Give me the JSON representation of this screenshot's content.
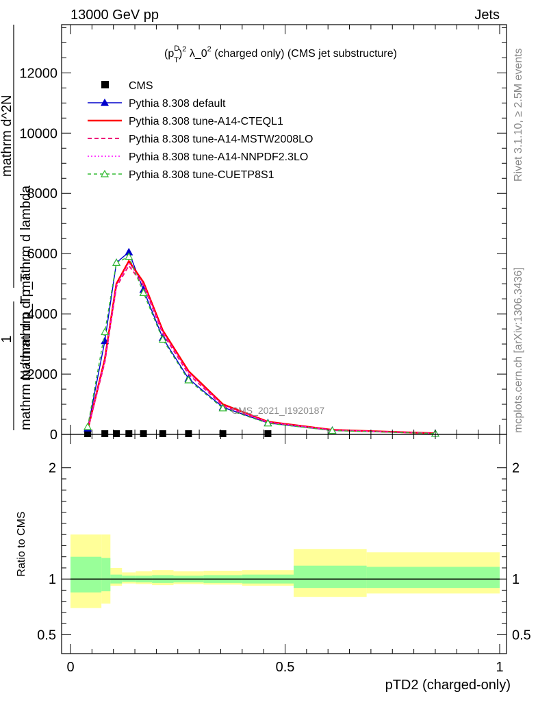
{
  "header": {
    "left": "13000 GeV pp",
    "right": "Jets"
  },
  "side": {
    "rivet": "Rivet 3.1.10, ≥ 2.5M events",
    "mcplots": "mcplots.cern.ch [arXiv:1306.3436]"
  },
  "watermark": "CMS_2021_I1920187",
  "chart_data": [
    {
      "type": "line",
      "title": "(p_T^D)^2 λ_0^2 (charged only) (CMS jet substructure)",
      "title_parts": {
        "p": "(p",
        "sup_d": "D",
        "sub_t": "T",
        "close": ")",
        "sup2": "2",
        "lambda": " λ_0",
        "sup3": "2",
        "rest": " (charged only) (CMS jet substructure)"
      },
      "ylabel_parts": {
        "frac1": "1",
        "frac1_den": "mathrm N / mathrm d p_T",
        "frac2_num": "mathrm d^2N",
        "frac2_den": "mathrm d p_T mathrm d lambda"
      },
      "ylabel_display": {
        "num1": "1",
        "den1": "mathrm N / mathrm d p_T",
        "num2": "mathrm d^2N",
        "den2": "mathrm d p_T mathrm d lambda"
      },
      "ylabel_rendered": [
        "mathrm d",
        "N",
        "mathrm d p",
        "T",
        "mathrm dlambda",
        "1",
        "mathrm N / mathrm d p",
        "T"
      ],
      "xlim": [
        0,
        1
      ],
      "ylim": [
        0,
        13600
      ],
      "yticks": [
        0,
        2000,
        4000,
        6000,
        8000,
        10000,
        12000
      ],
      "ytick_labels": [
        "0",
        "2000",
        "4000",
        "6000",
        "8000",
        "10000",
        "12000"
      ],
      "legend_position": "top-left",
      "series": [
        {
          "name": "CMS",
          "style": "marker-square",
          "color": "#000000",
          "x": [
            0.04,
            0.08,
            0.107,
            0.136,
            0.17,
            0.215,
            0.275,
            0.355,
            0.46
          ],
          "y": [
            0,
            0,
            0,
            0,
            0,
            0,
            0,
            0,
            0
          ]
        },
        {
          "name": "Pythia 8.308 default",
          "style": "solid-triangle",
          "color": "#0000cc",
          "x": [
            0.04,
            0.08,
            0.107,
            0.136,
            0.17,
            0.215,
            0.275,
            0.355,
            0.46,
            0.61,
            0.85
          ],
          "y": [
            200,
            3100,
            5700,
            6050,
            4800,
            3200,
            1850,
            900,
            380,
            130,
            30
          ]
        },
        {
          "name": "Pythia 8.308 tune-A14-CTEQL1",
          "style": "solid-thick",
          "color": "#ff0000",
          "x": [
            0.04,
            0.08,
            0.107,
            0.136,
            0.17,
            0.215,
            0.275,
            0.355,
            0.46,
            0.61,
            0.85
          ],
          "y": [
            150,
            2500,
            5000,
            5750,
            5050,
            3450,
            2100,
            1000,
            420,
            150,
            35
          ]
        },
        {
          "name": "Pythia 8.308 tune-A14-MSTW2008LO",
          "style": "dashed",
          "color": "#ee1a7a",
          "x": [
            0.04,
            0.08,
            0.107,
            0.136,
            0.17,
            0.215,
            0.275,
            0.355,
            0.46,
            0.61,
            0.85
          ],
          "y": [
            150,
            2400,
            4900,
            5600,
            4950,
            3350,
            2000,
            950,
            400,
            140,
            32
          ]
        },
        {
          "name": "Pythia 8.308 tune-A14-NNPDF2.3LO",
          "style": "dotted",
          "color": "#ff00ff",
          "x": [
            0.04,
            0.08,
            0.107,
            0.136,
            0.17,
            0.215,
            0.275,
            0.355,
            0.46,
            0.61,
            0.85
          ],
          "y": [
            150,
            2450,
            4950,
            5700,
            5000,
            3400,
            2050,
            970,
            410,
            145,
            33
          ]
        },
        {
          "name": "Pythia 8.308 tune-CUETP8S1",
          "style": "dashed-triangle-open",
          "color": "#33bb33",
          "x": [
            0.04,
            0.08,
            0.107,
            0.136,
            0.17,
            0.215,
            0.275,
            0.355,
            0.46,
            0.61,
            0.85
          ],
          "y": [
            250,
            3400,
            5700,
            5900,
            4700,
            3150,
            1800,
            870,
            370,
            125,
            28
          ]
        }
      ]
    },
    {
      "type": "area",
      "ylabel": "Ratio to CMS",
      "xlabel": "pTD2 (charged-only)",
      "xlim": [
        0,
        1
      ],
      "ylim": [
        0.33,
        2.3
      ],
      "xticks": [
        0,
        0.5,
        1
      ],
      "xtick_labels": [
        "0",
        "0.5",
        "1"
      ],
      "yticks": [
        0.5,
        1,
        2
      ],
      "ytick_labels": [
        "0.5",
        "1",
        "2"
      ],
      "reference_line": 1,
      "bins": [
        {
          "x0": 0.0,
          "x1": 0.072,
          "inner": [
            0.88,
            1.2
          ],
          "outer": [
            0.74,
            1.4
          ]
        },
        {
          "x0": 0.072,
          "x1": 0.093,
          "inner": [
            0.89,
            1.19
          ],
          "outer": [
            0.78,
            1.4
          ]
        },
        {
          "x0": 0.093,
          "x1": 0.12,
          "inner": [
            0.96,
            1.04
          ],
          "outer": [
            0.94,
            1.1
          ]
        },
        {
          "x0": 0.12,
          "x1": 0.152,
          "inner": [
            0.975,
            1.03
          ],
          "outer": [
            0.96,
            1.06
          ]
        },
        {
          "x0": 0.152,
          "x1": 0.19,
          "inner": [
            0.97,
            1.03
          ],
          "outer": [
            0.955,
            1.07
          ]
        },
        {
          "x0": 0.19,
          "x1": 0.24,
          "inner": [
            0.965,
            1.035
          ],
          "outer": [
            0.945,
            1.08
          ]
        },
        {
          "x0": 0.24,
          "x1": 0.31,
          "inner": [
            0.97,
            1.03
          ],
          "outer": [
            0.955,
            1.07
          ]
        },
        {
          "x0": 0.31,
          "x1": 0.4,
          "inner": [
            0.965,
            1.035
          ],
          "outer": [
            0.95,
            1.075
          ]
        },
        {
          "x0": 0.4,
          "x1": 0.52,
          "inner": [
            0.96,
            1.04
          ],
          "outer": [
            0.94,
            1.08
          ]
        },
        {
          "x0": 0.52,
          "x1": 0.69,
          "inner": [
            0.92,
            1.12
          ],
          "outer": [
            0.84,
            1.27
          ]
        },
        {
          "x0": 0.69,
          "x1": 1.0,
          "inner": [
            0.92,
            1.11
          ],
          "outer": [
            0.87,
            1.24
          ]
        }
      ],
      "inner_color": "#99ff99",
      "outer_color": "#ffff99"
    }
  ]
}
